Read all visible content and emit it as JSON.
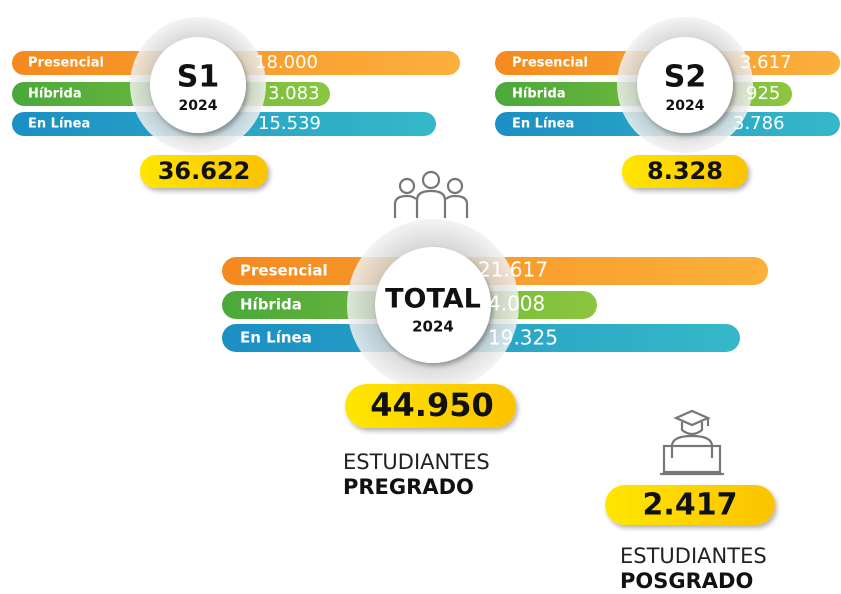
{
  "s1": {
    "title": "S1",
    "year": "2024",
    "rows": [
      {
        "label": "Presencial",
        "value": "18.000"
      },
      {
        "label": "Híbrida",
        "value": "3.083"
      },
      {
        "label": "En Línea",
        "value": "15.539"
      }
    ],
    "total": "36.622"
  },
  "s2": {
    "title": "S2",
    "year": "2024",
    "rows": [
      {
        "label": "Presencial",
        "value": "3.617"
      },
      {
        "label": "Híbrida",
        "value": "925"
      },
      {
        "label": "En Línea",
        "value": "3.786"
      }
    ],
    "total": "8.328"
  },
  "overall": {
    "title": "TOTAL",
    "year": "2024",
    "rows": [
      {
        "label": "Presencial",
        "value": "21.617"
      },
      {
        "label": "Híbrida",
        "value": "4.008"
      },
      {
        "label": "En Línea",
        "value": "19.325"
      }
    ],
    "total": "44.950"
  },
  "pregrado": {
    "line1": "ESTUDIANTES",
    "line2": "PREGRADO"
  },
  "posgrado": {
    "total": "2.417",
    "line1": "ESTUDIANTES",
    "line2": "POSGRADO"
  }
}
